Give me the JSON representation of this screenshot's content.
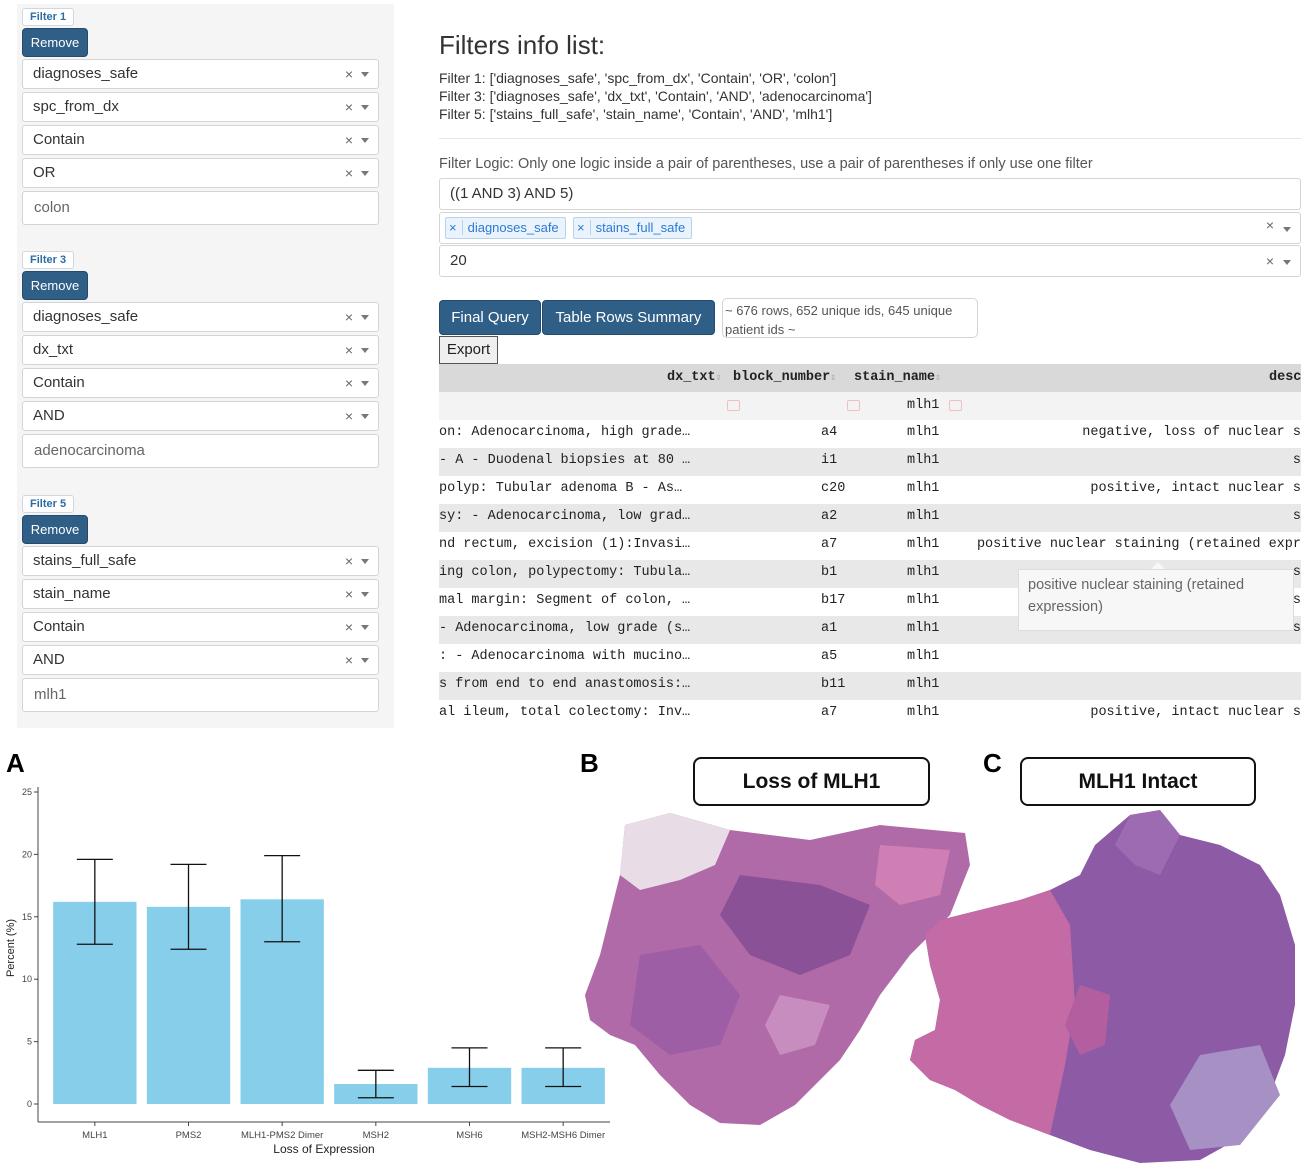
{
  "filters": [
    {
      "tag": "Filter 1",
      "remove": "Remove",
      "column": "diagnoses_safe",
      "field": "spc_from_dx",
      "op": "Contain",
      "logic": "OR",
      "value": "colon"
    },
    {
      "tag": "Filter 3",
      "remove": "Remove",
      "column": "diagnoses_safe",
      "field": "dx_txt",
      "op": "Contain",
      "logic": "AND",
      "value": "adenocarcinoma"
    },
    {
      "tag": "Filter 5",
      "remove": "Remove",
      "column": "stains_full_safe",
      "field": "stain_name",
      "op": "Contain",
      "logic": "AND",
      "value": "mlh1"
    }
  ],
  "info": {
    "title": "Filters info list:",
    "lines": [
      "Filter 1: ['diagnoses_safe', 'spc_from_dx', 'Contain', 'OR', 'colon']",
      "Filter 3: ['diagnoses_safe', 'dx_txt', 'Contain', 'AND', 'adenocarcinoma']",
      "Filter 5: ['stains_full_safe', 'stain_name', 'Contain', 'AND', 'mlh1']"
    ]
  },
  "logic": {
    "label": "Filter Logic: Only one logic inside a pair of parentheses, use a pair of parentheses if only use one filter",
    "value": "((1 AND 3) AND 5)",
    "tables": [
      "diagnoses_safe",
      "stains_full_safe"
    ],
    "limit": "20"
  },
  "actions": {
    "final_query": "Final Query",
    "summary_btn": "Table Rows Summary",
    "summary_text": "~ 676 rows, 652 unique ids, 645 unique patient ids ~",
    "export": "Export"
  },
  "table": {
    "headers": [
      "dx_txt",
      "block_number",
      "stain_name",
      "desc"
    ],
    "filter_stain": "mlh1",
    "rows": [
      [
        "on: Adenocarcinoma, high grade…",
        "a4",
        "mlh1",
        "negative, loss of nuclear s"
      ],
      [
        "- A - Duodenal biopsies at 80 …",
        "i1",
        "mlh1",
        "s"
      ],
      [
        " polyp: Tubular adenoma B - As…",
        "c20",
        "mlh1",
        "positive, intact nuclear s"
      ],
      [
        "sy: - Adenocarcinoma, low grad…",
        "a2",
        "mlh1",
        "s"
      ],
      [
        "nd rectum, excision (1):Invasi…",
        "a7",
        "mlh1",
        "positive nuclear staining (retained expr"
      ],
      [
        "ing colon, polypectomy: Tubula…",
        "b1",
        "mlh1",
        "s"
      ],
      [
        "mal margin: Segment of colon, …",
        "b17",
        "mlh1",
        "s"
      ],
      [
        "- Adenocarcinoma, low grade (s…",
        "a1",
        "mlh1",
        "s"
      ],
      [
        ": - Adenocarcinoma with mucino…",
        "a5",
        "mlh1",
        ""
      ],
      [
        "s from end to end anastomosis:…",
        "b11",
        "mlh1",
        ""
      ],
      [
        "al ileum, total colectomy: Inv…",
        "a7",
        "mlh1",
        "positive, intact nuclear s"
      ]
    ],
    "tooltip": "positive nuclear staining (retained expression)"
  },
  "panels": {
    "a": "A",
    "b": "B",
    "c": "C",
    "b_label": "Loss of MLH1",
    "c_label": "MLH1 Intact"
  },
  "chart_data": {
    "type": "bar",
    "categories": [
      "MLH1",
      "PMS2",
      "MLH1-PMS2 Dimer",
      "MSH2",
      "MSH6",
      "MSH2-MSH6 Dimer"
    ],
    "values": [
      16.2,
      15.8,
      16.4,
      1.6,
      2.9,
      2.9
    ],
    "error_low": [
      12.8,
      12.4,
      13.0,
      0.5,
      1.4,
      1.4
    ],
    "error_high": [
      19.6,
      19.2,
      19.9,
      2.7,
      4.5,
      4.5
    ],
    "xlabel": "Loss of Expression",
    "ylabel": "Percent (%)",
    "ylim": [
      0,
      25
    ],
    "yticks": [
      0,
      5,
      10,
      15,
      20,
      25
    ],
    "bar_color": "#87ceeb",
    "grid": false
  },
  "colors": {
    "button": "#2f5e86",
    "chip": "#2a7ad6",
    "stain_pink": "#c9649e",
    "stain_purple": "#7a4b9c"
  }
}
